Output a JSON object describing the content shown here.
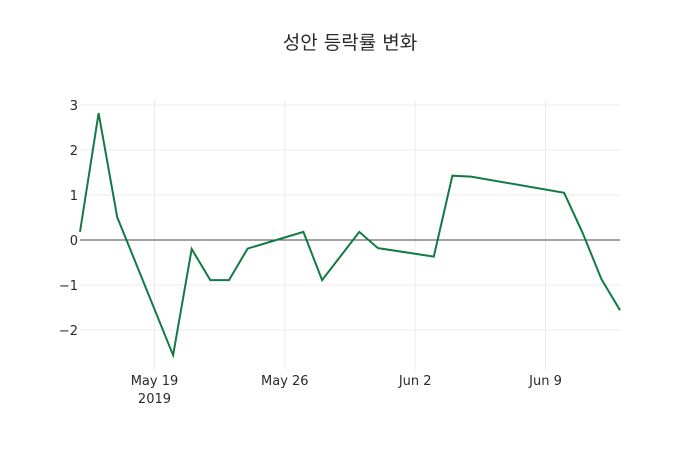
{
  "chart_data": {
    "type": "line",
    "title": "성안 등락률 변화",
    "xlabel": "",
    "ylabel": "",
    "x": [
      "2019-05-15",
      "2019-05-16",
      "2019-05-17",
      "2019-05-20",
      "2019-05-21",
      "2019-05-22",
      "2019-05-23",
      "2019-05-24",
      "2019-05-27",
      "2019-05-28",
      "2019-05-30",
      "2019-05-31",
      "2019-06-03",
      "2019-06-04",
      "2019-06-05",
      "2019-06-10",
      "2019-06-11",
      "2019-06-12",
      "2019-06-13"
    ],
    "series": [
      {
        "name": "등락률",
        "color": "#127a44",
        "values": [
          0.18,
          2.82,
          0.51,
          -2.56,
          -0.2,
          -0.89,
          -0.89,
          -0.19,
          0.18,
          -0.89,
          0.18,
          -0.18,
          -0.37,
          1.43,
          1.41,
          1.05,
          0.15,
          -0.87,
          -1.56
        ]
      }
    ],
    "x_ticks": [
      {
        "date": "2019-05-19",
        "label": "May 19",
        "sublabel": "2019"
      },
      {
        "date": "2019-05-26",
        "label": "May 26"
      },
      {
        "date": "2019-06-02",
        "label": "Jun 2"
      },
      {
        "date": "2019-06-09",
        "label": "Jun 9"
      }
    ],
    "y_ticks": [
      3,
      2,
      1,
      0,
      -1,
      -2
    ],
    "y_tick_labels": [
      "3",
      "2",
      "1",
      "0",
      "−1",
      "−2"
    ],
    "ylim": [
      -2.72,
      3.1
    ],
    "xlim": [
      "2019-05-15",
      "2019-06-13"
    ],
    "grid": true,
    "zero_line": true,
    "legend": "none"
  }
}
